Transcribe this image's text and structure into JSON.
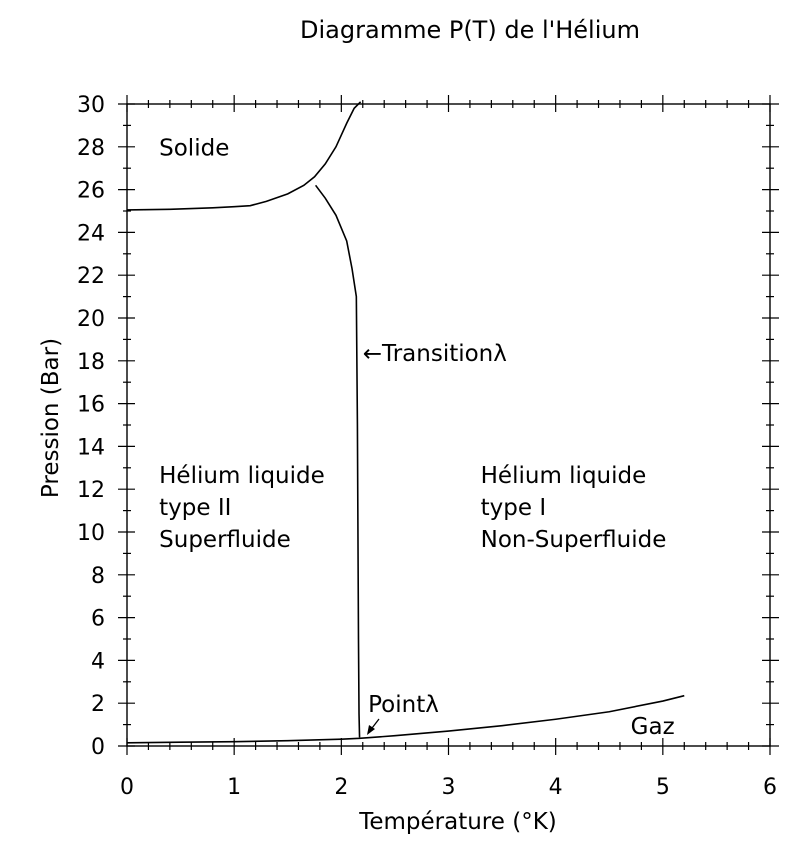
{
  "chart_data": {
    "type": "line",
    "title": "Diagramme P(T) de l'Hélium",
    "xlabel": "Température (°K)",
    "ylabel": "Pression (Bar)",
    "xlim": [
      0,
      6
    ],
    "ylim": [
      0,
      30
    ],
    "xticks": [
      0,
      1,
      2,
      3,
      4,
      5,
      6
    ],
    "yticks": [
      0,
      2,
      4,
      6,
      8,
      10,
      12,
      14,
      16,
      18,
      20,
      22,
      24,
      26,
      28,
      30
    ],
    "grid": false,
    "series": [
      {
        "x": [
          0,
          0.4,
          0.8,
          1.0,
          1.15,
          1.3,
          1.5,
          1.65,
          1.75,
          1.85,
          1.95,
          2.05,
          2.12,
          2.18
        ],
        "y": [
          25.05,
          25.08,
          25.15,
          25.2,
          25.25,
          25.45,
          25.8,
          26.2,
          26.6,
          27.2,
          28.0,
          29.1,
          29.8,
          30.1
        ]
      },
      {
        "x": [
          1.76,
          1.85,
          1.95,
          2.05,
          2.1,
          2.14,
          2.15,
          2.16,
          2.165,
          2.17
        ],
        "y": [
          26.2,
          25.6,
          24.8,
          23.6,
          22.3,
          21.0,
          15.0,
          5.0,
          1.5,
          0.4
        ]
      },
      {
        "x": [
          0,
          0.5,
          1.0,
          1.5,
          2.0,
          2.17,
          2.5,
          3.0,
          3.5,
          4.0,
          4.5,
          5.0,
          5.2
        ],
        "y": [
          0.15,
          0.18,
          0.2,
          0.25,
          0.32,
          0.36,
          0.48,
          0.7,
          0.95,
          1.25,
          1.6,
          2.1,
          2.35
        ]
      }
    ],
    "annotations": [
      {
        "text": "Solide",
        "x": 0.3,
        "y": 27.6
      },
      {
        "text": "←Transitionλ",
        "x": 2.2,
        "y": 18.0
      },
      {
        "text": "Hélium liquide",
        "x": 0.3,
        "y": 12.3
      },
      {
        "text": "type II",
        "x": 0.3,
        "y": 10.8
      },
      {
        "text": "Superfluide",
        "x": 0.3,
        "y": 9.3
      },
      {
        "text": "Hélium liquide",
        "x": 3.3,
        "y": 12.3
      },
      {
        "text": "type I",
        "x": 3.3,
        "y": 10.8
      },
      {
        "text": "Non-Superfluide",
        "x": 3.3,
        "y": 9.3
      },
      {
        "text": "Pointλ",
        "x": 2.25,
        "y": 1.6
      },
      {
        "text": "Gaz",
        "x": 4.7,
        "y": 0.55
      }
    ]
  }
}
